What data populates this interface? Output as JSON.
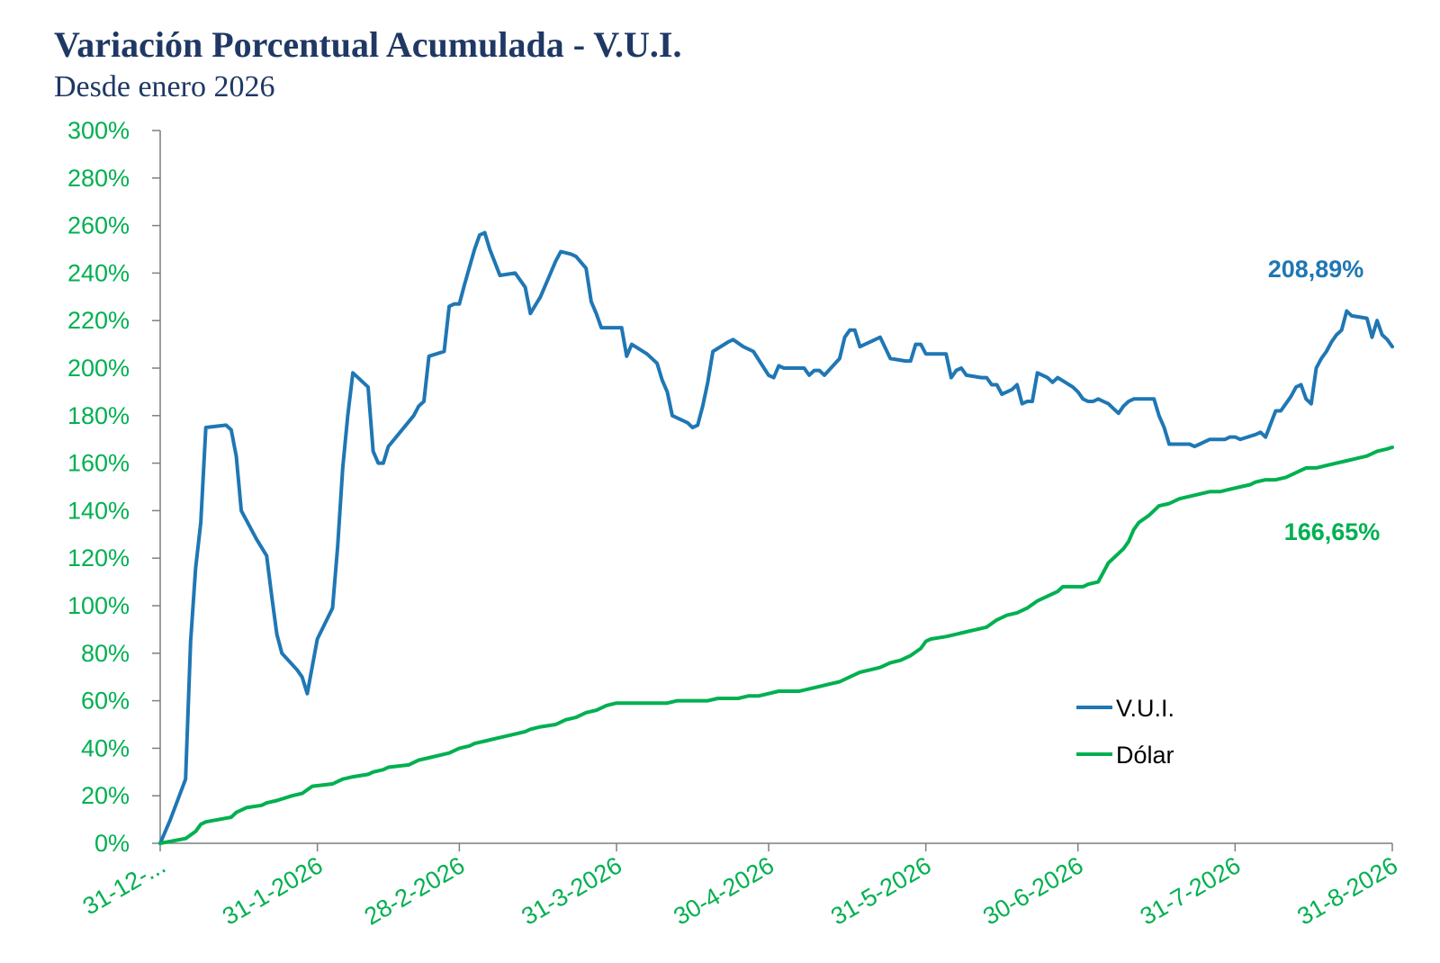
{
  "chart_data": {
    "type": "line",
    "title": "Variación Porcentual Acumulada - V.U.I.",
    "subtitle": "Desde enero 2026",
    "xlabel": "",
    "ylabel": "",
    "ylim": [
      0,
      300
    ],
    "y_ticks": [
      "0%",
      "20%",
      "40%",
      "60%",
      "80%",
      "100%",
      "120%",
      "140%",
      "160%",
      "180%",
      "200%",
      "220%",
      "240%",
      "260%",
      "280%",
      "300%"
    ],
    "x_ticks": [
      "31-12-...",
      "31-1-2026",
      "28-2-2026",
      "31-3-2026",
      "30-4-2026",
      "31-5-2026",
      "30-6-2026",
      "31-7-2026",
      "31-8-2026"
    ],
    "x_tick_days": [
      0,
      31,
      59,
      90,
      120,
      151,
      181,
      212,
      243
    ],
    "x_range_days": [
      0,
      243
    ],
    "grid": false,
    "legend_position": "lower-right-inside",
    "series": [
      {
        "name": "V.U.I.",
        "color": "#1f77b4",
        "end_label": "208,89%",
        "points": [
          [
            0,
            0
          ],
          [
            2,
            10
          ],
          [
            5,
            27
          ],
          [
            6,
            85
          ],
          [
            7,
            116
          ],
          [
            8,
            135
          ],
          [
            9,
            175
          ],
          [
            13,
            176
          ],
          [
            14,
            174
          ],
          [
            15,
            163
          ],
          [
            16,
            140
          ],
          [
            19,
            128
          ],
          [
            21,
            121
          ],
          [
            22,
            104
          ],
          [
            23,
            88
          ],
          [
            24,
            80
          ],
          [
            27,
            73
          ],
          [
            28,
            70
          ],
          [
            29,
            63
          ],
          [
            31,
            86
          ],
          [
            34,
            99
          ],
          [
            35,
            125
          ],
          [
            36,
            158
          ],
          [
            37,
            180
          ],
          [
            38,
            198
          ],
          [
            41,
            192
          ],
          [
            42,
            165
          ],
          [
            43,
            160
          ],
          [
            44,
            160
          ],
          [
            45,
            167
          ],
          [
            50,
            180
          ],
          [
            51,
            184
          ],
          [
            52,
            186
          ],
          [
            53,
            205
          ],
          [
            56,
            207
          ],
          [
            57,
            226
          ],
          [
            58,
            227
          ],
          [
            59,
            227
          ],
          [
            60,
            235
          ],
          [
            62,
            250
          ],
          [
            63,
            256
          ],
          [
            64,
            257
          ],
          [
            65,
            250
          ],
          [
            67,
            239
          ],
          [
            70,
            240
          ],
          [
            72,
            234
          ],
          [
            73,
            223
          ],
          [
            75,
            230
          ],
          [
            77,
            240
          ],
          [
            78,
            245
          ],
          [
            79,
            249
          ],
          [
            81,
            248
          ],
          [
            82,
            247
          ],
          [
            84,
            242
          ],
          [
            85,
            228
          ],
          [
            86,
            223
          ],
          [
            87,
            217
          ],
          [
            91,
            217
          ],
          [
            92,
            205
          ],
          [
            93,
            210
          ],
          [
            96,
            206
          ],
          [
            98,
            202
          ],
          [
            99,
            195
          ],
          [
            100,
            190
          ],
          [
            101,
            180
          ],
          [
            104,
            177
          ],
          [
            105,
            175
          ],
          [
            106,
            176
          ],
          [
            107,
            184
          ],
          [
            108,
            194
          ],
          [
            109,
            207
          ],
          [
            112,
            211
          ],
          [
            113,
            212
          ],
          [
            115,
            209
          ],
          [
            117,
            207
          ],
          [
            120,
            197
          ],
          [
            121,
            196
          ],
          [
            122,
            201
          ],
          [
            123,
            200
          ],
          [
            127,
            200
          ],
          [
            128,
            197
          ],
          [
            129,
            199
          ],
          [
            130,
            199
          ],
          [
            131,
            197
          ],
          [
            134,
            204
          ],
          [
            135,
            213
          ],
          [
            136,
            216
          ],
          [
            137,
            216
          ],
          [
            138,
            209
          ],
          [
            141,
            212
          ],
          [
            142,
            213
          ],
          [
            144,
            204
          ],
          [
            147,
            203
          ],
          [
            148,
            203
          ],
          [
            149,
            210
          ],
          [
            150,
            210
          ],
          [
            151,
            206
          ],
          [
            153,
            206
          ],
          [
            155,
            206
          ],
          [
            156,
            196
          ],
          [
            157,
            199
          ],
          [
            158,
            200
          ],
          [
            159,
            197
          ],
          [
            162,
            196
          ],
          [
            163,
            196
          ],
          [
            164,
            193
          ],
          [
            165,
            193
          ],
          [
            166,
            189
          ],
          [
            167,
            190
          ],
          [
            168,
            191
          ],
          [
            169,
            193
          ],
          [
            170,
            185
          ],
          [
            171,
            186
          ],
          [
            172,
            186
          ],
          [
            173,
            198
          ],
          [
            175,
            196
          ],
          [
            176,
            194
          ],
          [
            177,
            196
          ],
          [
            180,
            192
          ],
          [
            181,
            190
          ],
          [
            182,
            187
          ],
          [
            183,
            186
          ],
          [
            184,
            186
          ],
          [
            185,
            187
          ],
          [
            186,
            186
          ],
          [
            187,
            185
          ],
          [
            188,
            183
          ],
          [
            189,
            181
          ],
          [
            190,
            184
          ],
          [
            191,
            186
          ],
          [
            192,
            187
          ],
          [
            195,
            187
          ],
          [
            196,
            187
          ],
          [
            197,
            180
          ],
          [
            198,
            175
          ],
          [
            199,
            168
          ],
          [
            202,
            168
          ],
          [
            203,
            168
          ],
          [
            204,
            167
          ],
          [
            205,
            168
          ],
          [
            206,
            169
          ],
          [
            207,
            170
          ],
          [
            210,
            170
          ],
          [
            211,
            171
          ],
          [
            212,
            171
          ],
          [
            213,
            170
          ],
          [
            216,
            172
          ],
          [
            217,
            173
          ],
          [
            218,
            171
          ],
          [
            220,
            182
          ],
          [
            221,
            182
          ],
          [
            222,
            185
          ],
          [
            223,
            188
          ],
          [
            224,
            192
          ],
          [
            225,
            193
          ],
          [
            226,
            187
          ],
          [
            227,
            185
          ],
          [
            228,
            200
          ],
          [
            229,
            204
          ],
          [
            230,
            207
          ],
          [
            231,
            211
          ],
          [
            232,
            214
          ],
          [
            233,
            216
          ],
          [
            234,
            224
          ],
          [
            235,
            222
          ],
          [
            238,
            221
          ],
          [
            239,
            213
          ],
          [
            240,
            220
          ],
          [
            241,
            214
          ],
          [
            242,
            212
          ],
          [
            243,
            209
          ]
        ]
      },
      {
        "name": "Dólar",
        "color": "#00b050",
        "end_label": "166,65%",
        "points": [
          [
            0,
            0
          ],
          [
            5,
            2
          ],
          [
            7,
            5
          ],
          [
            8,
            8
          ],
          [
            9,
            9
          ],
          [
            14,
            11
          ],
          [
            15,
            13
          ],
          [
            17,
            15
          ],
          [
            20,
            16
          ],
          [
            21,
            17
          ],
          [
            23,
            18
          ],
          [
            26,
            20
          ],
          [
            28,
            21
          ],
          [
            30,
            24
          ],
          [
            34,
            25
          ],
          [
            36,
            27
          ],
          [
            38,
            28
          ],
          [
            41,
            29
          ],
          [
            42,
            30
          ],
          [
            44,
            31
          ],
          [
            45,
            32
          ],
          [
            49,
            33
          ],
          [
            50,
            34
          ],
          [
            51,
            35
          ],
          [
            53,
            36
          ],
          [
            55,
            37
          ],
          [
            57,
            38
          ],
          [
            59,
            40
          ],
          [
            61,
            41
          ],
          [
            62,
            42
          ],
          [
            64,
            43
          ],
          [
            66,
            44
          ],
          [
            68,
            45
          ],
          [
            70,
            46
          ],
          [
            72,
            47
          ],
          [
            73,
            48
          ],
          [
            75,
            49
          ],
          [
            78,
            50
          ],
          [
            80,
            52
          ],
          [
            82,
            53
          ],
          [
            83,
            54
          ],
          [
            84,
            55
          ],
          [
            86,
            56
          ],
          [
            88,
            58
          ],
          [
            90,
            59
          ],
          [
            95,
            59
          ],
          [
            97,
            59
          ],
          [
            98,
            59
          ],
          [
            100,
            59
          ],
          [
            102,
            60
          ],
          [
            104,
            60
          ],
          [
            106,
            60
          ],
          [
            108,
            60
          ],
          [
            110,
            61
          ],
          [
            112,
            61
          ],
          [
            114,
            61
          ],
          [
            116,
            62
          ],
          [
            118,
            62
          ],
          [
            120,
            63
          ],
          [
            122,
            64
          ],
          [
            124,
            64
          ],
          [
            126,
            64
          ],
          [
            128,
            65
          ],
          [
            130,
            66
          ],
          [
            132,
            67
          ],
          [
            134,
            68
          ],
          [
            136,
            70
          ],
          [
            138,
            72
          ],
          [
            140,
            73
          ],
          [
            142,
            74
          ],
          [
            144,
            76
          ],
          [
            146,
            77
          ],
          [
            148,
            79
          ],
          [
            150,
            82
          ],
          [
            151,
            85
          ],
          [
            152,
            86
          ],
          [
            155,
            87
          ],
          [
            157,
            88
          ],
          [
            159,
            89
          ],
          [
            161,
            90
          ],
          [
            163,
            91
          ],
          [
            165,
            94
          ],
          [
            167,
            96
          ],
          [
            169,
            97
          ],
          [
            171,
            99
          ],
          [
            173,
            102
          ],
          [
            175,
            104
          ],
          [
            177,
            106
          ],
          [
            178,
            108
          ],
          [
            180,
            108
          ],
          [
            182,
            108
          ],
          [
            183,
            109
          ],
          [
            185,
            110
          ],
          [
            186,
            114
          ],
          [
            187,
            118
          ],
          [
            189,
            122
          ],
          [
            190,
            124
          ],
          [
            191,
            127
          ],
          [
            192,
            132
          ],
          [
            193,
            135
          ],
          [
            195,
            138
          ],
          [
            197,
            142
          ],
          [
            199,
            143
          ],
          [
            201,
            145
          ],
          [
            203,
            146
          ],
          [
            205,
            147
          ],
          [
            207,
            148
          ],
          [
            209,
            148
          ],
          [
            211,
            149
          ],
          [
            213,
            150
          ],
          [
            215,
            151
          ],
          [
            216,
            152
          ],
          [
            218,
            153
          ],
          [
            220,
            153
          ],
          [
            222,
            154
          ],
          [
            224,
            156
          ],
          [
            226,
            158
          ],
          [
            228,
            158
          ],
          [
            230,
            159
          ],
          [
            232,
            160
          ],
          [
            234,
            161
          ],
          [
            236,
            162
          ],
          [
            238,
            163
          ],
          [
            240,
            165
          ],
          [
            242,
            166
          ],
          [
            243,
            166.65
          ]
        ]
      }
    ]
  }
}
